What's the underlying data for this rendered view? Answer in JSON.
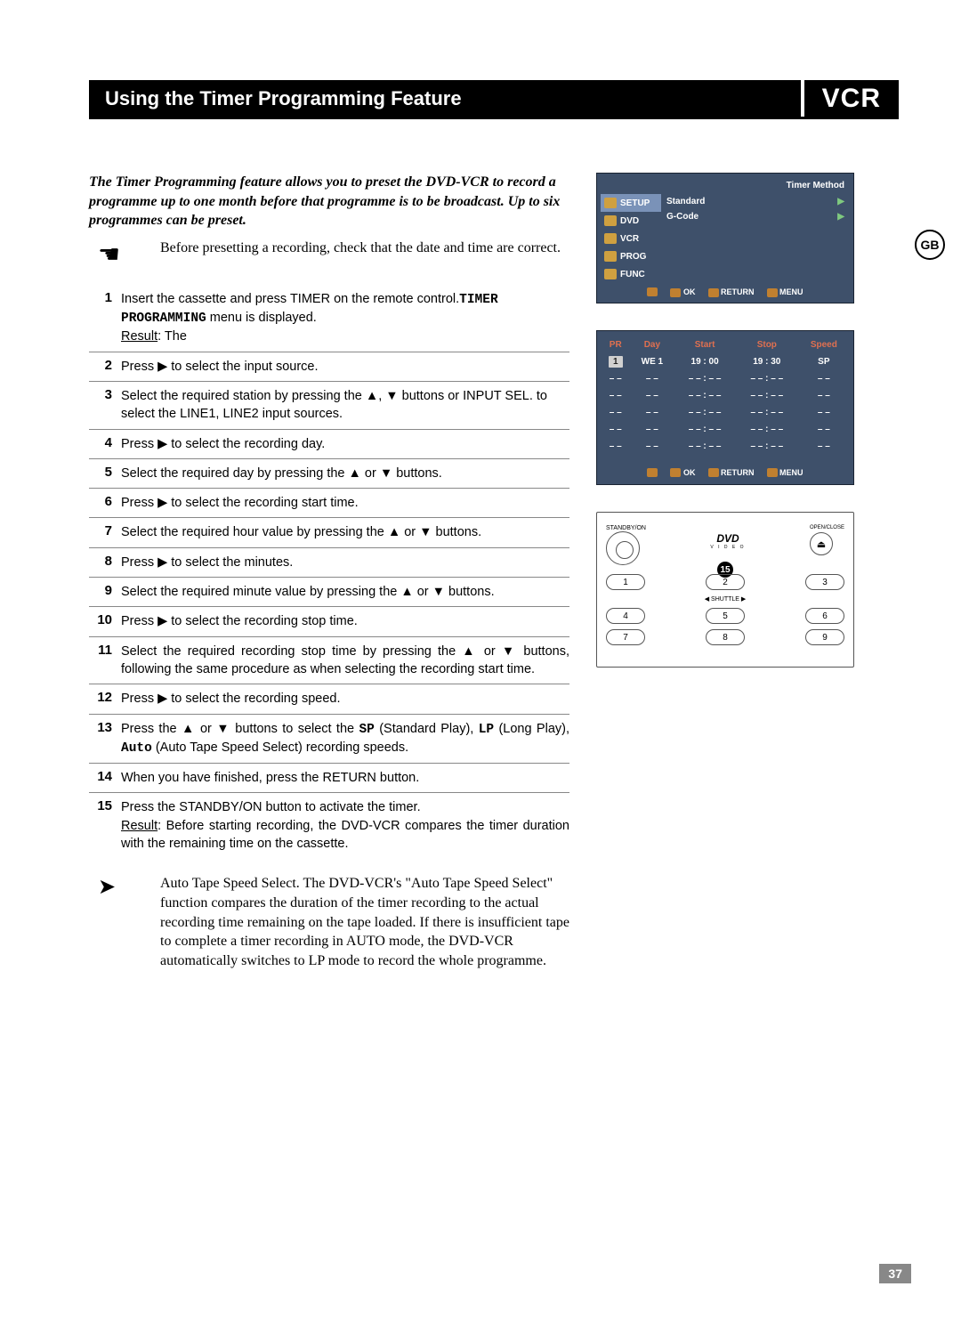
{
  "header": {
    "title": "Using the Timer Programming Feature",
    "badge": "VCR"
  },
  "gb": "GB",
  "intro": "The Timer Programming feature allows you to preset the DVD-VCR to record a programme up to one month before that programme is to be broadcast. Up to six programmes can be preset.",
  "note": "Before presetting a recording, check that the date and time are correct.",
  "steps": [
    {
      "n": "1",
      "body": "Insert the cassette and press TIMER on the remote control.",
      "result_label": "Result",
      "result": ":    The ",
      "mono": "TIMER PROGRAMMING",
      "tail": " menu is displayed."
    },
    {
      "n": "2",
      "body": "Press ▶ to select the input source."
    },
    {
      "n": "3",
      "body": "Select the required station by pressing the ▲, ▼ buttons or INPUT SEL. to select the  LINE1, LINE2 input sources."
    },
    {
      "n": "4",
      "body": "Press ▶ to select the recording day."
    },
    {
      "n": "5",
      "body": "Select the required day by pressing the ▲ or ▼ buttons."
    },
    {
      "n": "6",
      "body": "Press ▶ to select the recording start time."
    },
    {
      "n": "7",
      "body": "Select the required hour value by pressing the ▲ or ▼ buttons."
    },
    {
      "n": "8",
      "body": "Press ▶ to select the minutes."
    },
    {
      "n": "9",
      "body": "Select the required minute value by pressing the ▲ or ▼ buttons."
    },
    {
      "n": "10",
      "body": "Press ▶ to select the recording stop time."
    },
    {
      "n": "11",
      "body": "Select the required recording stop time by pressing the ▲ or ▼ buttons, following the same procedure as when selecting the recording start time.",
      "justify": true
    },
    {
      "n": "12",
      "body": "Press ▶ to select the recording speed."
    },
    {
      "n": "13",
      "body": "Press the ▲ or ▼ buttons to select the ",
      "mono": "SP",
      "mid": " (Standard Play), ",
      "mono2": "LP",
      "mid2": " (Long Play), ",
      "mono3": "Auto",
      "tail": " (Auto Tape Speed Select) recording speeds.",
      "justify": true
    },
    {
      "n": "14",
      "body": "When you have finished, press the RETURN button."
    },
    {
      "n": "15",
      "body": "Press the STANDBY/ON button to activate the timer.",
      "result_label": "Result",
      "result": ":    Before starting recording, the DVD-VCR compares the timer duration with the remaining time on the cassette.",
      "noborder": true,
      "justify": true
    }
  ],
  "end_note": "Auto Tape Speed Select. The DVD-VCR's \"Auto Tape Speed Select\" function compares the duration of the timer recording to the actual recording time remaining on the tape loaded. If there is insufficient tape to complete a timer recording in AUTO mode, the DVD-VCR automatically switches to LP mode to record the whole programme.",
  "osd1": {
    "header": "Timer Method",
    "side": [
      "SETUP",
      "DVD",
      "VCR",
      "PROG",
      "FUNC"
    ],
    "opts": [
      [
        "Standard",
        "▶"
      ],
      [
        "G-Code",
        "▶"
      ]
    ],
    "foot": [
      "OK",
      "RETURN",
      "MENU"
    ]
  },
  "table": {
    "cols": [
      "PR",
      "Day",
      "Start",
      "Stop",
      "Speed"
    ],
    "rows": [
      [
        "1",
        "WE  1",
        "19 : 00",
        "19 : 30",
        "SP"
      ],
      [
        "– –",
        "– –",
        "– – : – –",
        "– – : – –",
        "– –"
      ],
      [
        "– –",
        "– –",
        "– – : – –",
        "– – : – –",
        "– –"
      ],
      [
        "– –",
        "– –",
        "– – : – –",
        "– – : – –",
        "– –"
      ],
      [
        "– –",
        "– –",
        "– – : – –",
        "– – : – –",
        "– –"
      ],
      [
        "– –",
        "– –",
        "– – : – –",
        "– – : – –",
        "– –"
      ]
    ],
    "foot": [
      "OK",
      "RETURN",
      "MENU"
    ]
  },
  "remote": {
    "standby": "STANDBY/ON",
    "logo": "DVD",
    "logo_sub": "V I D E O",
    "openclose": "OPEN/CLOSE",
    "eject": "⏏",
    "bubble": "15",
    "rows": [
      [
        "1",
        "2",
        "3"
      ],
      [
        "4",
        "5",
        "6"
      ],
      [
        "7",
        "8",
        "9"
      ]
    ],
    "shuttle": "◀ SHUTTLE ▶"
  },
  "page_num": "37"
}
